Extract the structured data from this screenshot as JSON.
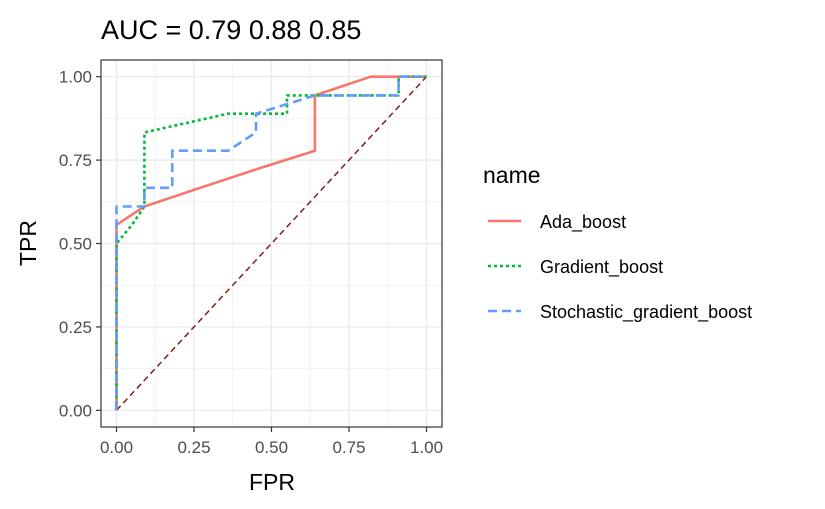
{
  "chart_data": {
    "type": "line",
    "title": "AUC = 0.79   0.88   0.85",
    "xlabel": "FPR",
    "ylabel": "TPR",
    "xlim": [
      0,
      1
    ],
    "ylim": [
      0,
      1
    ],
    "x_ticks": [
      "0.00",
      "0.25",
      "0.50",
      "0.75",
      "1.00"
    ],
    "y_ticks": [
      "0.00",
      "0.25",
      "0.50",
      "0.75",
      "1.00"
    ],
    "grid": true,
    "legend": {
      "title": "name",
      "position": "right"
    },
    "reference_line": {
      "x": [
        0,
        1
      ],
      "y": [
        0,
        1
      ],
      "color": "#7f1d1d",
      "style": "dashed"
    },
    "series": [
      {
        "name": "Ada_boost",
        "color": "#F8766D",
        "style": "solid",
        "x": [
          0,
          0,
          0,
          0.09,
          0.27,
          0.45,
          0.64,
          0.64,
          0.82,
          1.0
        ],
        "y": [
          0,
          0.5,
          0.556,
          0.611,
          0.667,
          0.722,
          0.778,
          0.944,
          1.0,
          1.0
        ]
      },
      {
        "name": "Gradient_boost",
        "color": "#00BA38",
        "style": "dotted",
        "x": [
          0,
          0,
          0.05,
          0.09,
          0.09,
          0.36,
          0.55,
          0.55,
          0.64,
          0.91,
          0.91,
          1.0
        ],
        "y": [
          0,
          0.5,
          0.556,
          0.611,
          0.833,
          0.889,
          0.889,
          0.944,
          0.944,
          0.944,
          1.0,
          1.0
        ]
      },
      {
        "name": "Stochastic_gradient_boost",
        "color": "#619CFF",
        "style": "dashed",
        "x": [
          0,
          0,
          0.09,
          0.09,
          0.18,
          0.18,
          0.36,
          0.45,
          0.45,
          0.64,
          0.91,
          0.91,
          1.0
        ],
        "y": [
          0,
          0.611,
          0.611,
          0.667,
          0.667,
          0.778,
          0.778,
          0.833,
          0.889,
          0.944,
          0.944,
          1.0,
          1.0
        ]
      }
    ]
  }
}
